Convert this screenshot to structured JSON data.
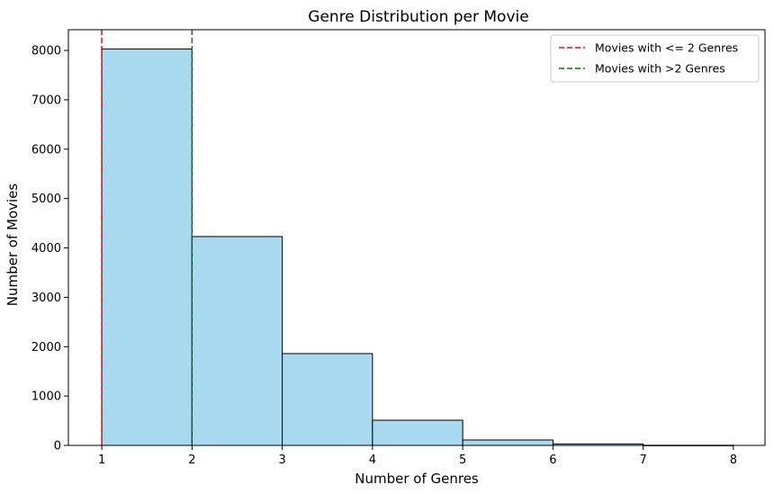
{
  "chart_data": {
    "type": "histogram",
    "title": "Genre Distribution per Movie",
    "xlabel": "Number of Genres",
    "ylabel": "Number of Movies",
    "xlim": [
      0.63,
      8.35
    ],
    "ylim": [
      0,
      8420
    ],
    "xticks": [
      1,
      2,
      3,
      4,
      5,
      6,
      7,
      8
    ],
    "yticks": [
      0,
      1000,
      2000,
      3000,
      4000,
      5000,
      6000,
      7000,
      8000
    ],
    "bins": [
      {
        "start": 1,
        "end": 2,
        "count": 8030
      },
      {
        "start": 2,
        "end": 3,
        "count": 4230
      },
      {
        "start": 3,
        "end": 4,
        "count": 1860
      },
      {
        "start": 4,
        "end": 5,
        "count": 510
      },
      {
        "start": 5,
        "end": 6,
        "count": 110
      },
      {
        "start": 6,
        "end": 7,
        "count": 30
      },
      {
        "start": 7,
        "end": 8,
        "count": 3
      }
    ],
    "bar_color": "#a8d9ee",
    "bar_edge_color": "#000000",
    "reference_lines": [
      {
        "x": 1,
        "label": "Movies with <= 2 Genres",
        "color": "#ff0000",
        "style": "dashed"
      },
      {
        "x": 2,
        "label": "Movies with >2 Genres",
        "color": "#008000",
        "style": "dashed"
      }
    ],
    "legend_position": "top-right",
    "grid": false
  }
}
